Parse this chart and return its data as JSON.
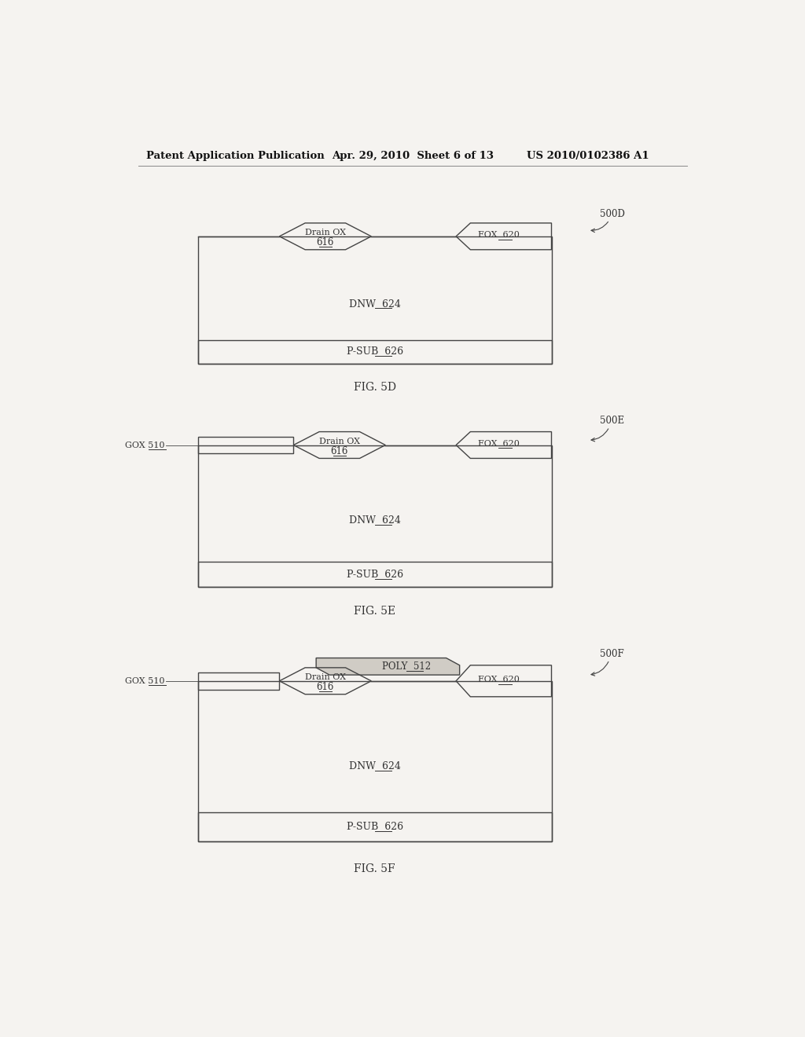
{
  "bg_color": "#f5f3f0",
  "line_color": "#444444",
  "text_color": "#333333",
  "header_left": "Patent Application Publication",
  "header_mid": "Apr. 29, 2010  Sheet 6 of 13",
  "header_right": "US 2010/0102386 A1",
  "fig5d_label": "FIG. 5D",
  "fig5e_label": "FIG. 5E",
  "fig5f_label": "FIG. 5F",
  "ref_500D": "500D",
  "ref_500E": "500E",
  "ref_500F": "500F"
}
